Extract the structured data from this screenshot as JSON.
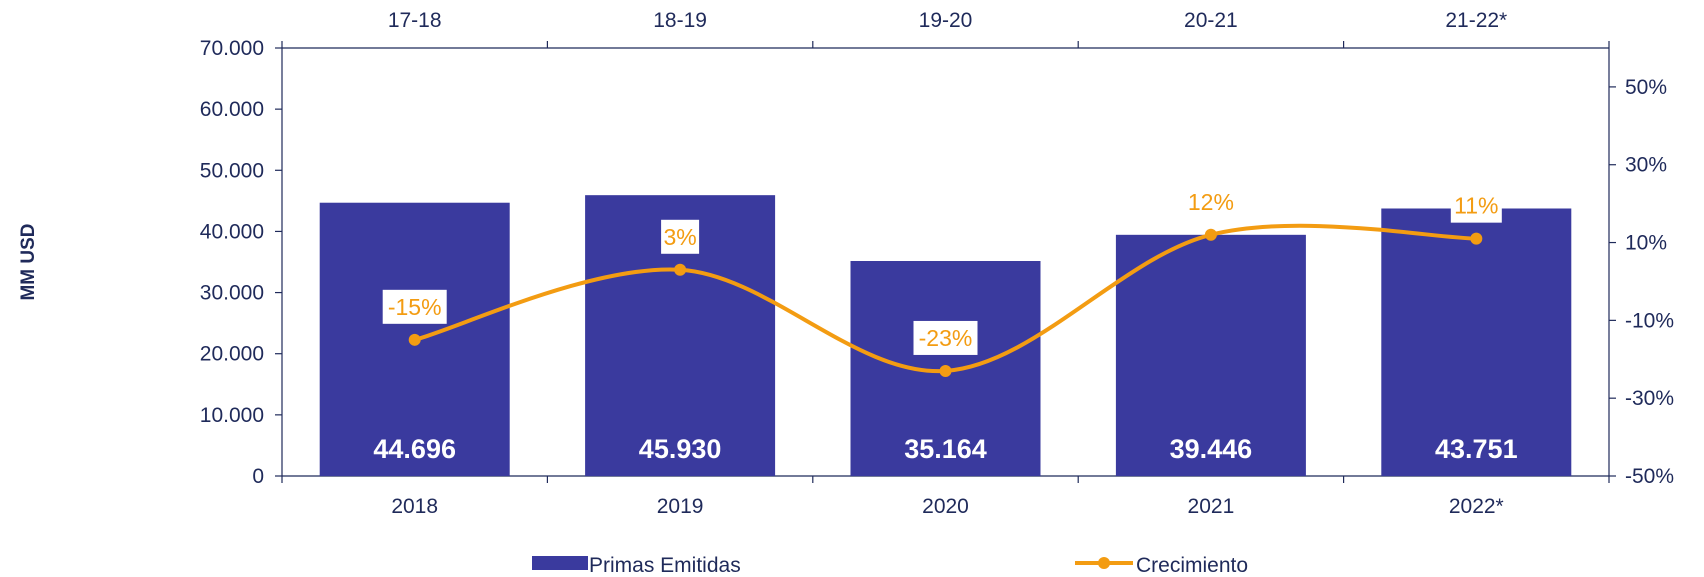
{
  "chart_data": {
    "type": "bar",
    "categories": [
      "2018",
      "2019",
      "2020",
      "2021",
      "2022*"
    ],
    "top_categories": [
      "17-18",
      "18-19",
      "19-20",
      "20-21",
      "21-22*"
    ],
    "ylabel": "MM USD",
    "ylim": [
      0,
      70000
    ],
    "y_ticks": [
      "0",
      "10.000",
      "20.000",
      "30.000",
      "40.000",
      "50.000",
      "60.000",
      "70.000"
    ],
    "y2lim": [
      -50,
      60
    ],
    "y2_ticks": [
      "-50%",
      "-30%",
      "-10%",
      "10%",
      "30%",
      "50%"
    ],
    "series": [
      {
        "name": "Primas Emitidas",
        "type": "bar",
        "values": [
          44696,
          45930,
          35164,
          39446,
          43751
        ],
        "labels": [
          "44.696",
          "45.930",
          "35.164",
          "39.446",
          "43.751"
        ],
        "color": "#3a3a9e"
      },
      {
        "name": "Crecimiento",
        "type": "line",
        "axis": "secondary",
        "values": [
          -15,
          3,
          -23,
          12,
          11
        ],
        "labels": [
          "-15%",
          "3%",
          "-23%",
          "12%",
          "11%"
        ],
        "color": "#f39c12"
      }
    ],
    "legend": "bottom"
  }
}
